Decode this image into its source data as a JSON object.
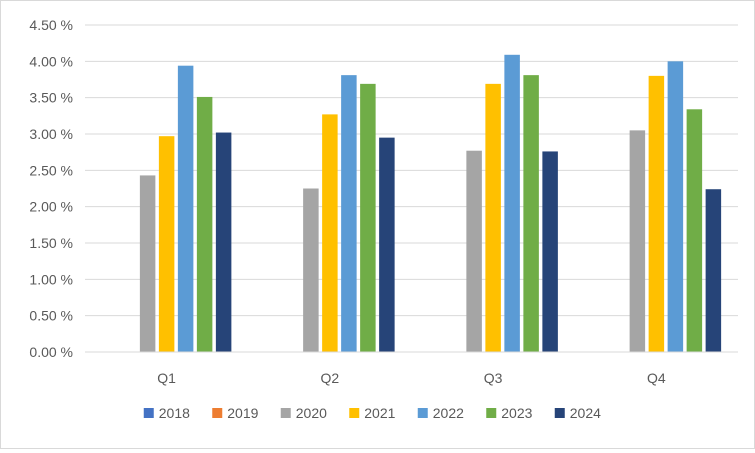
{
  "chart_data": {
    "type": "bar",
    "title": "",
    "xlabel": "",
    "ylabel": "",
    "categories": [
      "Q1",
      "Q2",
      "Q3",
      "Q4"
    ],
    "ylim": [
      0,
      4.5
    ],
    "yticks": [
      "0.00 %",
      "0.50 %",
      "1.00 %",
      "1.50 %",
      "2.00 %",
      "2.50 %",
      "3.00 %",
      "3.50 %",
      "4.00 %",
      "4.50 %"
    ],
    "ytick_values": [
      0,
      0.5,
      1.0,
      1.5,
      2.0,
      2.5,
      3.0,
      3.5,
      4.0,
      4.5
    ],
    "grid": true,
    "legend_position": "bottom",
    "series": [
      {
        "name": "2018",
        "color": "#4472c4",
        "values": [
          null,
          null,
          null,
          null
        ]
      },
      {
        "name": "2019",
        "color": "#ed7d31",
        "values": [
          null,
          null,
          null,
          null
        ]
      },
      {
        "name": "2020",
        "color": "#a5a5a5",
        "values": [
          2.43,
          2.25,
          2.77,
          3.05
        ]
      },
      {
        "name": "2021",
        "color": "#ffc000",
        "values": [
          2.97,
          3.27,
          3.69,
          3.8
        ]
      },
      {
        "name": "2022",
        "color": "#5b9bd5",
        "values": [
          3.94,
          3.81,
          4.09,
          4.0
        ]
      },
      {
        "name": "2023",
        "color": "#70ad47",
        "values": [
          3.51,
          3.69,
          3.81,
          3.34
        ]
      },
      {
        "name": "2024",
        "color": "#264478",
        "values": [
          3.02,
          2.95,
          2.76,
          2.24
        ]
      }
    ]
  }
}
